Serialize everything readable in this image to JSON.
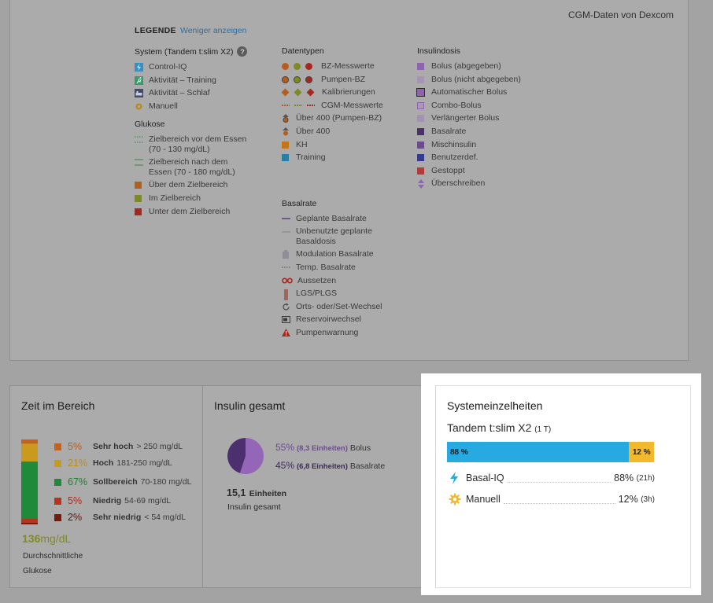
{
  "legend": {
    "source": "CGM-Daten von Dexcom",
    "title": "LEGENDE",
    "toggle": "Weniger anzeigen",
    "system": {
      "heading": "System (Tandem t:slim X2)",
      "items": [
        "Control-IQ",
        "Aktivität – Training",
        "Aktivität – Schlaf",
        "Manuell"
      ]
    },
    "glucose": {
      "heading": "Glukose",
      "items": [
        {
          "label": "Zielbereich vor dem Essen",
          "sub": "(70 - 130 mg/dL)"
        },
        {
          "label": "Zielbereich nach dem",
          "sub": "Essen (70 - 180 mg/dL)"
        },
        {
          "label": "Über dem Zielbereich",
          "sub": ""
        },
        {
          "label": "Im Zielbereich",
          "sub": ""
        },
        {
          "label": "Unter dem Zielbereich",
          "sub": ""
        }
      ]
    },
    "datatypes": {
      "heading": "Datentypen",
      "items": [
        "BZ-Messwerte",
        "Pumpen-BZ",
        "Kalibrierungen",
        "CGM-Messwerte",
        "Über 400 (Pumpen-BZ)",
        "Über 400",
        "KH",
        "Training"
      ]
    },
    "basal": {
      "heading": "Basalrate",
      "items": [
        {
          "label": "Geplante Basalrate",
          "sub": ""
        },
        {
          "label": "Unbenutzte geplante",
          "sub": "Basaldosis"
        },
        {
          "label": "Modulation Basalrate",
          "sub": ""
        },
        {
          "label": "Temp. Basalrate",
          "sub": ""
        },
        {
          "label": "Aussetzen",
          "sub": ""
        },
        {
          "label": "LGS/PLGS",
          "sub": ""
        },
        {
          "label": "Orts- oder/Set-Wechsel",
          "sub": ""
        },
        {
          "label": "Reservoirwechsel",
          "sub": ""
        },
        {
          "label": "Pumpenwarnung",
          "sub": ""
        }
      ]
    },
    "insulin": {
      "heading": "Insulindosis",
      "items": [
        "Bolus (abgegeben)",
        "Bolus (nicht abgegeben)",
        "Automatischer Bolus",
        "Combo-Bolus",
        "Verlängerter Bolus",
        "Basalrate",
        "Mischinsulin",
        "Benutzerdef.",
        "Gestoppt",
        "Überschreiben"
      ]
    }
  },
  "tir": {
    "title": "Zeit im Bereich",
    "rows": [
      {
        "pct": "5%",
        "label": "Sehr hoch",
        "range": "> 250 mg/dL",
        "color": "#c2621e",
        "value": 5
      },
      {
        "pct": "21%",
        "label": "Hoch",
        "range": "181-250 mg/dL",
        "color": "#c99a1d",
        "value": 21
      },
      {
        "pct": "67%",
        "label": "Sollbereich",
        "range": "70-180 mg/dL",
        "color": "#1f8a3a",
        "value": 67
      },
      {
        "pct": "5%",
        "label": "Niedrig",
        "range": "54-69 mg/dL",
        "color": "#b8321c",
        "value": 5
      },
      {
        "pct": "2%",
        "label": "Sehr niedrig",
        "range": "< 54 mg/dL",
        "color": "#6e1d10",
        "value": 2
      }
    ],
    "avg_value": "136",
    "avg_unit": "mg/dL",
    "avg_label_1": "Durchschnittliche",
    "avg_label_2": "Glukose"
  },
  "insulin_total": {
    "title": "Insulin gesamt",
    "bolus_pct": "55%",
    "bolus_units": "(8,3 Einheiten)",
    "bolus_label": "Bolus",
    "basal_pct": "45%",
    "basal_units": "(6,8 Einheiten)",
    "basal_label": "Basalrate",
    "total_value": "15,1",
    "total_unit": "Einheiten",
    "total_label": "Insulin gesamt",
    "bolus_fraction": 0.55,
    "colors": {
      "bolus": "#9466b8",
      "basal": "#4b2f6e"
    }
  },
  "system": {
    "title": "Systemeinzelheiten",
    "device": "Tandem t:slim X2",
    "device_note": "(1 T)",
    "bar": {
      "auto_pct": "88 %",
      "manual_pct": "12 %",
      "auto_value": 88,
      "auto_color": "#27a9e1",
      "manual_color": "#f2b82e"
    },
    "rows": [
      {
        "icon": "lightning-icon",
        "label": "Basal-IQ",
        "pct": "88%",
        "time": "(21h)"
      },
      {
        "icon": "gear-icon",
        "label": "Manuell",
        "pct": "12%",
        "time": "(3h)"
      }
    ]
  }
}
